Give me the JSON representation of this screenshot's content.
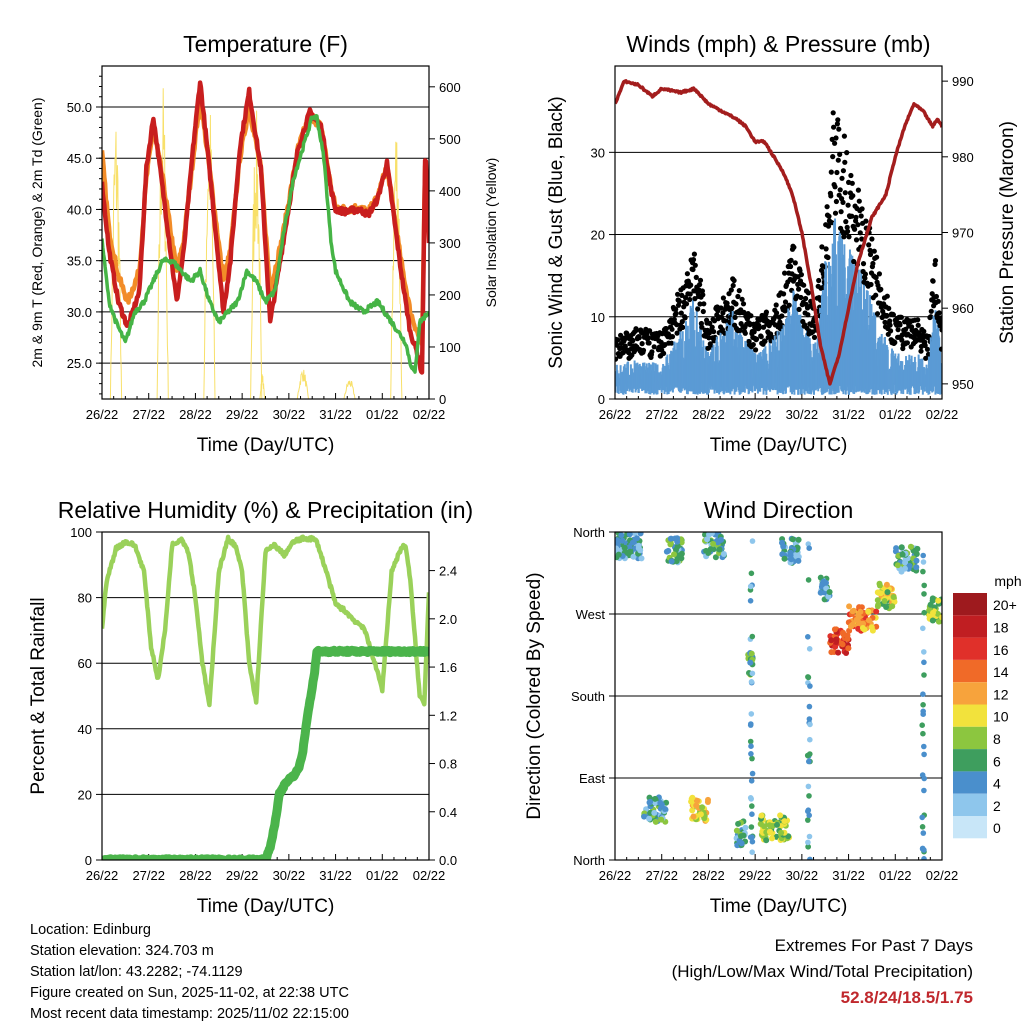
{
  "colors": {
    "temp_2m": "#c81e1e",
    "temp_9m": "#f28c28",
    "dewpoint": "#46b446",
    "solar": "#f8e06a",
    "wind": "#5b9bd5",
    "gust": "#000000",
    "pressure": "#a31d1d",
    "rh": "#9ad15a",
    "precip": "#4bb44b",
    "extreme_values": "#c0282d"
  },
  "chart_data": [
    {
      "id": "temperature",
      "type": "line",
      "title": "Temperature (F)",
      "xlabel": "Time (Day/UTC)",
      "ylabel": "2m & 9m T (Red, Orange) & 2m Td (Green)",
      "ylabel_right": "Solar Insolation (Yellow)",
      "xlim": [
        0,
        7
      ],
      "ylim": [
        21.5,
        54
      ],
      "ylim_right": [
        0,
        640
      ],
      "x_ticks": [
        "26/22",
        "27/22",
        "28/22",
        "29/22",
        "30/22",
        "31/22",
        "01/22",
        "02/22"
      ],
      "y_ticks": [
        25.0,
        30.0,
        35.0,
        40.0,
        45.0,
        50.0
      ],
      "y_ticks_right": [
        0,
        100,
        200,
        300,
        400,
        500,
        600
      ],
      "grid": "horizontal",
      "series": [
        {
          "name": "2m T",
          "color": "#c81e1e",
          "x": [
            0,
            0.15,
            0.35,
            0.55,
            0.8,
            0.95,
            1.1,
            1.3,
            1.6,
            1.75,
            1.95,
            2.1,
            2.3,
            2.6,
            2.75,
            2.95,
            3.15,
            3.4,
            3.6,
            3.85,
            4.2,
            4.45,
            4.7,
            4.9,
            5.0,
            5.2,
            5.5,
            5.7,
            5.9,
            6.1,
            6.4,
            6.6,
            6.75,
            6.85,
            6.92,
            7.0
          ],
          "values": [
            42.5,
            36,
            31,
            28.5,
            32,
            44,
            49,
            42,
            31,
            36,
            46,
            52.5,
            44,
            30,
            35,
            46,
            51.5,
            44,
            29,
            36,
            46,
            49.5,
            48,
            42,
            40,
            39.8,
            40,
            39.5,
            41,
            44.5,
            34,
            28,
            26,
            24,
            46,
            37
          ]
        },
        {
          "name": "9m T",
          "color": "#f28c28",
          "x": [
            0,
            0.15,
            0.35,
            0.55,
            0.8,
            0.95,
            1.1,
            1.3,
            1.6,
            1.75,
            1.95,
            2.1,
            2.3,
            2.6,
            2.75,
            2.95,
            3.15,
            3.4,
            3.6,
            3.85,
            4.2,
            4.45,
            4.7,
            4.9,
            5.0,
            5.2,
            5.5,
            5.7,
            5.9,
            6.1,
            6.4,
            6.6,
            6.75,
            6.85,
            6.92,
            7.0
          ],
          "values": [
            45.5,
            38,
            33.5,
            31,
            34,
            43,
            48,
            43,
            34,
            37,
            45,
            51,
            44,
            33,
            36,
            45,
            50,
            44,
            32,
            37,
            46,
            49.3,
            48,
            42.2,
            40.2,
            40,
            40.2,
            39.7,
            41.2,
            44.3,
            35,
            30,
            28,
            26.5,
            45,
            38
          ]
        },
        {
          "name": "2m Td",
          "color": "#46b446",
          "x": [
            0,
            0.15,
            0.3,
            0.5,
            0.7,
            0.9,
            1.1,
            1.3,
            1.5,
            1.7,
            1.9,
            2.1,
            2.3,
            2.5,
            2.7,
            2.9,
            3.1,
            3.3,
            3.5,
            3.7,
            3.9,
            4.1,
            4.3,
            4.5,
            4.6,
            4.75,
            4.9,
            5.0,
            5.3,
            5.6,
            5.9,
            6.2,
            6.5,
            6.6,
            6.7,
            6.8,
            7.0
          ],
          "values": [
            37,
            31,
            29,
            27,
            30,
            31,
            33,
            35,
            35,
            34,
            33,
            34,
            31,
            29,
            30,
            31,
            34,
            33,
            31,
            32,
            38,
            43,
            46,
            49,
            49,
            45,
            37,
            34,
            31,
            30,
            31,
            29,
            27,
            25,
            24,
            29,
            30
          ]
        },
        {
          "name": "Solar",
          "color": "#f8e06a",
          "axis": "right",
          "x": [
            0.18,
            0.42,
            1.18,
            1.42,
            2.18,
            2.42,
            3.18,
            3.42,
            3.38,
            3.48,
            4.18,
            4.42,
            5.18,
            5.42,
            6.18,
            6.42
          ],
          "values": [
            560,
            0,
            620,
            0,
            590,
            0,
            560,
            0,
            50,
            0,
            60,
            0,
            40,
            0,
            560,
            0
          ]
        }
      ]
    },
    {
      "id": "winds",
      "type": "scatter",
      "title": "Winds (mph) & Pressure (mb)",
      "xlabel": "Time (Day/UTC)",
      "ylabel": "Sonic Wind & Gust (Blue, Black)",
      "ylabel_right": "Station Pressure (Maroon)",
      "xlim": [
        0,
        7
      ],
      "ylim": [
        0,
        40.5
      ],
      "ylim_right": [
        948,
        992
      ],
      "x_ticks": [
        "26/22",
        "27/22",
        "28/22",
        "29/22",
        "30/22",
        "31/22",
        "01/22",
        "02/22"
      ],
      "y_ticks": [
        0,
        10,
        20,
        30
      ],
      "y_ticks_right": [
        950,
        960,
        970,
        980,
        990
      ],
      "grid": "horizontal",
      "series": [
        {
          "name": "Gust",
          "color": "#000000",
          "x": [
            0,
            0.5,
            1.0,
            1.5,
            1.7,
            2.0,
            2.5,
            3.0,
            3.5,
            3.8,
            4.0,
            4.3,
            4.5,
            4.7,
            4.9,
            5.1,
            5.4,
            5.7,
            6.0,
            6.5,
            6.7,
            6.85,
            7.0
          ],
          "values": [
            6,
            7,
            6.5,
            12,
            15,
            7.5,
            12,
            7.5,
            10,
            16,
            12,
            9,
            18,
            30,
            26,
            22,
            18,
            12,
            8,
            8,
            6,
            15,
            7
          ]
        },
        {
          "name": "Sonic Wind",
          "color": "#5b9bd5",
          "x": [
            0,
            0.5,
            1.0,
            1.5,
            1.7,
            2.0,
            2.5,
            3.0,
            3.5,
            3.8,
            4.0,
            4.3,
            4.5,
            4.7,
            4.9,
            5.1,
            5.4,
            5.7,
            6.0,
            6.5,
            6.7,
            6.85,
            7.0
          ],
          "values": [
            3,
            3.5,
            3,
            7,
            9,
            4,
            8,
            4,
            6,
            10,
            7,
            5,
            12,
            16,
            14,
            13,
            10,
            6,
            4,
            4,
            3,
            9,
            3
          ]
        },
        {
          "name": "Station Pressure",
          "color": "#a31d1d",
          "axis": "right",
          "x": [
            0,
            0.2,
            0.5,
            0.8,
            1.0,
            1.4,
            1.7,
            2.0,
            2.3,
            2.6,
            2.8,
            3.0,
            3.2,
            3.4,
            3.6,
            3.8,
            4.0,
            4.2,
            4.4,
            4.6,
            4.8,
            5.0,
            5.2,
            5.5,
            5.8,
            6.0,
            6.2,
            6.4,
            6.6,
            6.8,
            6.9,
            7.0
          ],
          "values": [
            987,
            990,
            989.5,
            988,
            989,
            988.5,
            989,
            987,
            986,
            985,
            984,
            982,
            982,
            980,
            978,
            975,
            970,
            963,
            955,
            950,
            954,
            960,
            966,
            972,
            975,
            980,
            984,
            987,
            986,
            984,
            985,
            984
          ]
        }
      ]
    },
    {
      "id": "humidity",
      "type": "line",
      "title": "Relative Humidity (%) & Precipitation (in)",
      "xlabel": "Time (Day/UTC)",
      "ylabel": "Percent & Total Rainfall",
      "xlim": [
        0,
        7
      ],
      "ylim": [
        0,
        100
      ],
      "ylim_right": [
        0,
        2.72
      ],
      "x_ticks": [
        "26/22",
        "27/22",
        "28/22",
        "29/22",
        "30/22",
        "31/22",
        "01/22",
        "02/22"
      ],
      "y_ticks": [
        0,
        20,
        40,
        60,
        80,
        100
      ],
      "y_ticks_right": [
        0.0,
        0.4,
        0.8,
        1.2,
        1.6,
        2.0,
        2.4
      ],
      "grid": "horizontal",
      "series": [
        {
          "name": "RH",
          "color": "#9ad15a",
          "x": [
            0,
            0.1,
            0.3,
            0.5,
            0.7,
            0.9,
            1.05,
            1.2,
            1.35,
            1.5,
            1.7,
            1.85,
            2.0,
            2.15,
            2.3,
            2.5,
            2.7,
            2.85,
            3.0,
            3.15,
            3.3,
            3.5,
            3.7,
            3.9,
            4.1,
            4.3,
            4.5,
            4.6,
            4.8,
            5.0,
            5.2,
            5.4,
            5.6,
            5.8,
            6.0,
            6.2,
            6.4,
            6.5,
            6.6,
            6.8,
            6.9,
            7.0
          ],
          "values": [
            71,
            85,
            95,
            97,
            96,
            88,
            65,
            55,
            70,
            96,
            98,
            94,
            80,
            60,
            47,
            88,
            98,
            96,
            88,
            60,
            48,
            94,
            96,
            93,
            97,
            98,
            98,
            97,
            88,
            78,
            76,
            73,
            71,
            62,
            52,
            88,
            95,
            96,
            85,
            50,
            48,
            82
          ]
        },
        {
          "name": "Total Rainfall",
          "color": "#4bb44b",
          "axis": "right",
          "x": [
            0,
            3.3,
            3.5,
            3.6,
            3.7,
            3.8,
            3.95,
            4.1,
            4.2,
            4.3,
            4.4,
            4.55,
            4.6,
            5.0,
            6.0,
            7.0
          ],
          "values": [
            0,
            0,
            0,
            0.1,
            0.3,
            0.55,
            0.65,
            0.7,
            0.75,
            0.9,
            1.2,
            1.55,
            1.73,
            1.73,
            1.73,
            1.73
          ]
        }
      ]
    },
    {
      "id": "direction",
      "type": "scatter",
      "title": "Wind Direction",
      "xlabel": "Time (Day/UTC)",
      "ylabel": "Direction (Colored By Speed)",
      "xlim": [
        0,
        7
      ],
      "ylim": [
        0,
        360
      ],
      "x_ticks": [
        "26/22",
        "27/22",
        "28/22",
        "29/22",
        "30/22",
        "31/22",
        "01/22",
        "02/22"
      ],
      "y_ticks": [
        "North",
        "East",
        "South",
        "West",
        "North"
      ],
      "y_tick_values": [
        0,
        90,
        180,
        270,
        360
      ],
      "grid": "horizontal",
      "legend": {
        "title": "mph",
        "labels": [
          "0",
          "2",
          "4",
          "6",
          "8",
          "10",
          "12",
          "14",
          "16",
          "18",
          "20+"
        ],
        "colors": [
          "#c8e6f8",
          "#8ec6ec",
          "#4a8fcc",
          "#3e9e5e",
          "#8cc63f",
          "#f2e23c",
          "#f7a33c",
          "#f06a28",
          "#e0302a",
          "#c01e22",
          "#9e1a1e"
        ],
        "position": "right"
      },
      "clusters": [
        {
          "x_from": 0.0,
          "x_to": 0.6,
          "dir": 345,
          "speed": 4
        },
        {
          "x_from": 0.6,
          "x_to": 1.1,
          "dir": 55,
          "speed": 5
        },
        {
          "x_from": 1.1,
          "x_to": 1.45,
          "dir": 340,
          "speed": 5
        },
        {
          "x_from": 1.6,
          "x_to": 2.0,
          "dir": 55,
          "speed": 9
        },
        {
          "x_from": 1.9,
          "x_to": 2.35,
          "dir": 345,
          "speed": 5
        },
        {
          "x_from": 2.6,
          "x_to": 2.8,
          "dir": 30,
          "speed": 5
        },
        {
          "x_from": 2.85,
          "x_to": 2.95,
          "dir": 215,
          "speed": 7
        },
        {
          "x_from": 3.1,
          "x_to": 3.75,
          "dir": 35,
          "speed": 8
        },
        {
          "x_from": 3.55,
          "x_to": 3.95,
          "dir": 340,
          "speed": 4
        },
        {
          "x_from": 4.4,
          "x_to": 4.6,
          "dir": 300,
          "speed": 4
        },
        {
          "x_from": 4.6,
          "x_to": 5.0,
          "dir": 240,
          "speed": 16
        },
        {
          "x_from": 5.0,
          "x_to": 5.6,
          "dir": 265,
          "speed": 13
        },
        {
          "x_from": 5.6,
          "x_to": 6.0,
          "dir": 290,
          "speed": 9
        },
        {
          "x_from": 6.0,
          "x_to": 6.5,
          "dir": 330,
          "speed": 5
        },
        {
          "x_from": 6.7,
          "x_to": 7.0,
          "dir": 275,
          "speed": 8
        }
      ]
    }
  ],
  "info": {
    "location": "Location: Edinburg",
    "elevation": "Station elevation: 324.703 m",
    "latlon": "Station lat/lon: 43.2282; -74.1129",
    "created": "Figure created on Sun, 2025-11-02, at 22:38 UTC",
    "recent": "Most recent data timestamp: 2025/11/02 22:15:00"
  },
  "extremes": {
    "title": "Extremes For Past 7 Days",
    "subtitle": "(High/Low/Max Wind/Total Precipitation)",
    "values": "52.8/24/18.5/1.75"
  }
}
